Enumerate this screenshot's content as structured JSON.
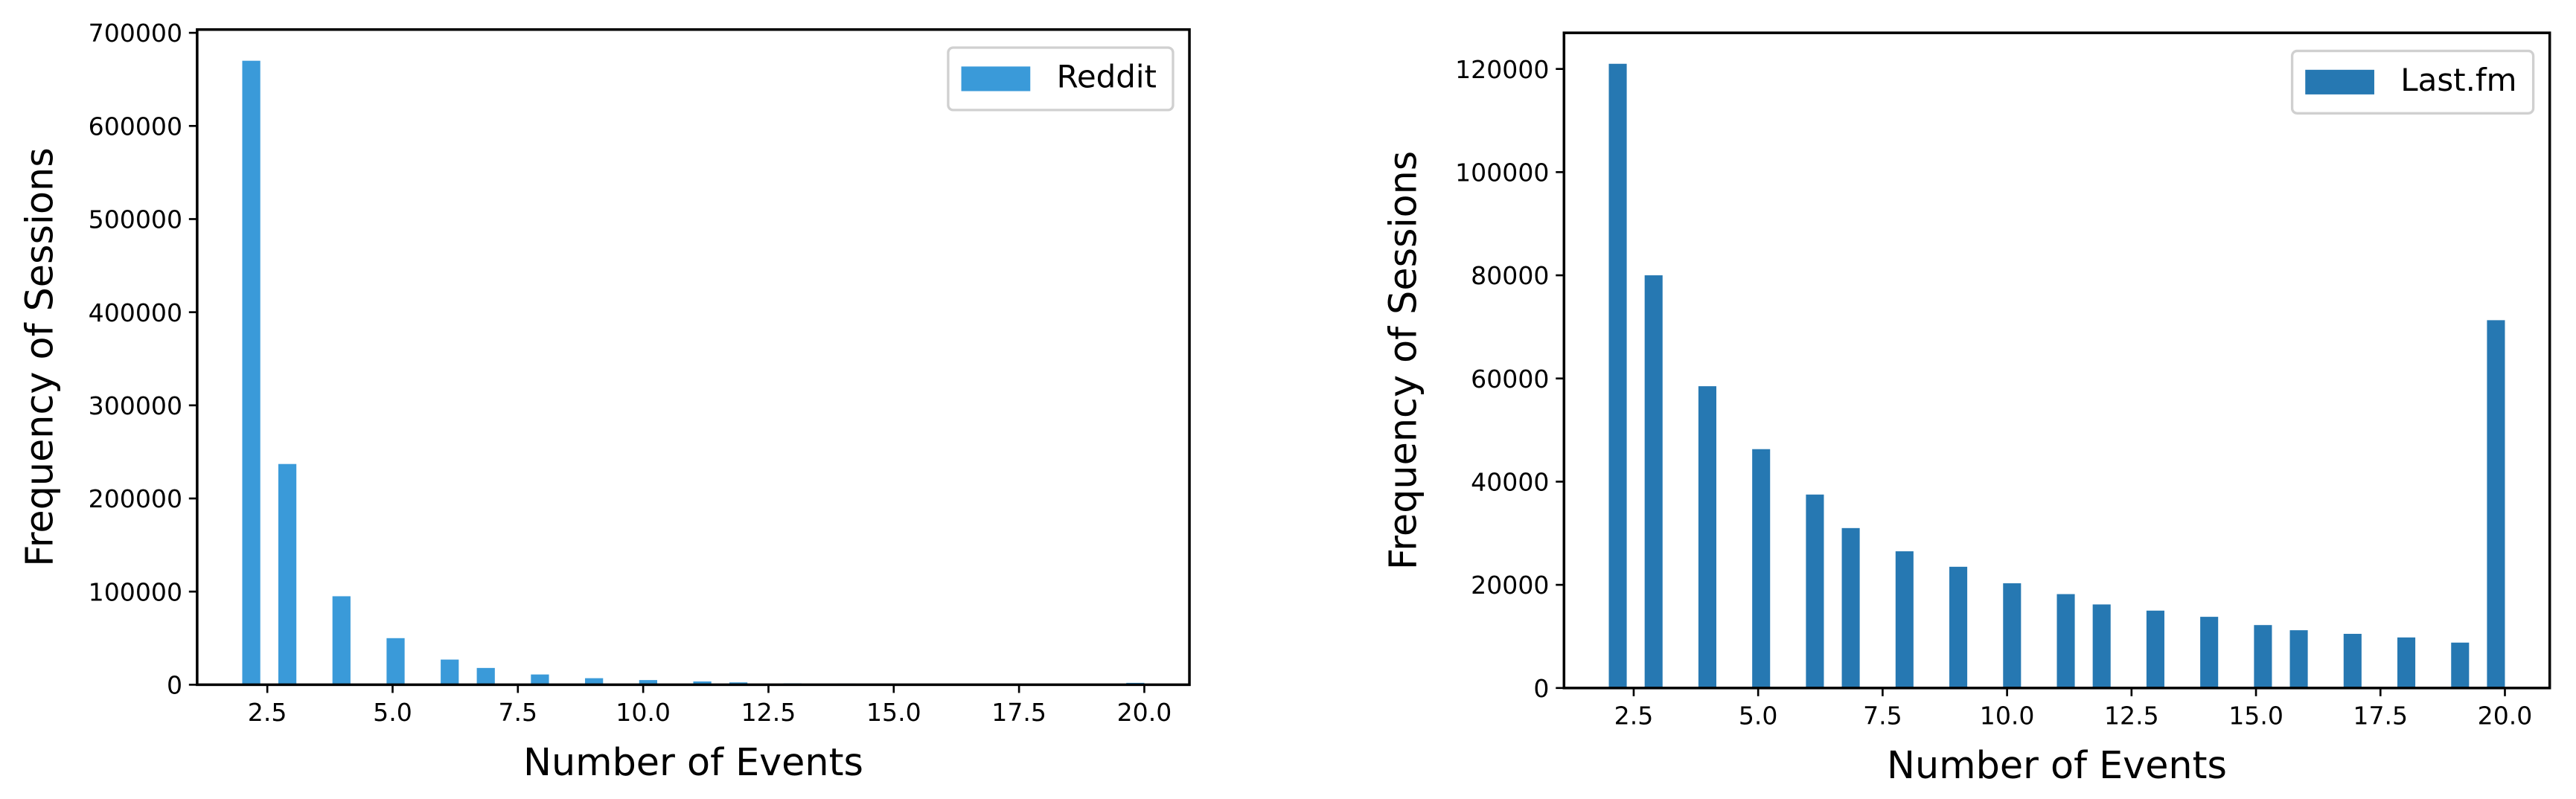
{
  "chart_data": [
    {
      "type": "histogram",
      "xlabel": "Number of Events",
      "ylabel": "Frequency of Sessions",
      "bins": [
        2,
        2.36,
        2.72,
        3.08,
        3.44,
        3.8,
        4.16,
        4.52,
        4.88,
        5.24,
        5.6,
        5.96,
        6.32,
        6.68,
        7.04,
        7.4,
        7.76,
        8.12,
        8.48,
        8.84,
        9.2,
        9.56,
        9.92,
        10.28,
        10.64,
        11,
        11.36,
        11.72,
        12.08,
        12.44,
        12.8,
        13.16,
        13.52,
        13.88,
        14.24,
        14.6,
        14.96,
        15.32,
        15.68,
        16.04,
        16.4,
        16.76,
        17.12,
        17.48,
        17.84,
        18.2,
        18.56,
        18.92,
        19.28,
        19.64,
        20
      ],
      "series": [
        {
          "name": "Reddit",
          "color": "#3a9ad9",
          "values": [
            670000,
            0,
            237000,
            0,
            0,
            95000,
            0,
            0,
            50000,
            0,
            0,
            27000,
            0,
            18000,
            0,
            0,
            11000,
            0,
            0,
            7000,
            0,
            0,
            5000,
            0,
            0,
            3500,
            0,
            2500,
            0,
            0,
            1500,
            0,
            0,
            1200,
            0,
            0,
            1000,
            0,
            800,
            0,
            0,
            600,
            0,
            0,
            500,
            0,
            0,
            400,
            0,
            2000
          ]
        }
      ],
      "xlim": [
        1.1,
        20.9
      ],
      "xticks": [
        2.5,
        {
          "value": 5,
          "label": "5.0"
        },
        7.5,
        {
          "value": 10,
          "label": "10.0"
        },
        12.5,
        {
          "value": 15,
          "label": "15.0"
        },
        17.5,
        {
          "value": 20,
          "label": "20.0"
        }
      ],
      "ylim": [
        0,
        703500
      ],
      "yticks": [
        0,
        100000,
        200000,
        300000,
        400000,
        500000,
        600000,
        700000
      ],
      "legend": "upper right",
      "grid": false
    },
    {
      "type": "histogram",
      "xlabel": "Number of Events",
      "ylabel": "Frequency of Sessions",
      "bins": [
        2,
        2.36,
        2.72,
        3.08,
        3.44,
        3.8,
        4.16,
        4.52,
        4.88,
        5.24,
        5.6,
        5.96,
        6.32,
        6.68,
        7.04,
        7.4,
        7.76,
        8.12,
        8.48,
        8.84,
        9.2,
        9.56,
        9.92,
        10.28,
        10.64,
        11,
        11.36,
        11.72,
        12.08,
        12.44,
        12.8,
        13.16,
        13.52,
        13.88,
        14.24,
        14.6,
        14.96,
        15.32,
        15.68,
        16.04,
        16.4,
        16.76,
        17.12,
        17.48,
        17.84,
        18.2,
        18.56,
        18.92,
        19.28,
        19.64,
        20
      ],
      "series": [
        {
          "name": "Last.fm",
          "color": "#2678b2",
          "values": [
            121000,
            0,
            80000,
            0,
            0,
            58500,
            0,
            0,
            46300,
            0,
            0,
            37500,
            0,
            31000,
            0,
            0,
            26500,
            0,
            0,
            23500,
            0,
            0,
            20300,
            0,
            0,
            18200,
            0,
            16200,
            0,
            0,
            15000,
            0,
            0,
            13800,
            0,
            0,
            12200,
            0,
            11200,
            0,
            0,
            10500,
            0,
            0,
            9800,
            0,
            0,
            8800,
            0,
            71300
          ]
        }
      ],
      "xlim": [
        1.1,
        20.9
      ],
      "xticks": [
        2.5,
        {
          "value": 5,
          "label": "5.0"
        },
        7.5,
        {
          "value": 10,
          "label": "10.0"
        },
        12.5,
        {
          "value": 15,
          "label": "15.0"
        },
        17.5,
        {
          "value": 20,
          "label": "20.0"
        }
      ],
      "ylim": [
        0,
        127000
      ],
      "yticks": [
        0,
        20000,
        40000,
        60000,
        80000,
        100000,
        120000
      ],
      "legend": "upper right",
      "grid": false
    }
  ]
}
